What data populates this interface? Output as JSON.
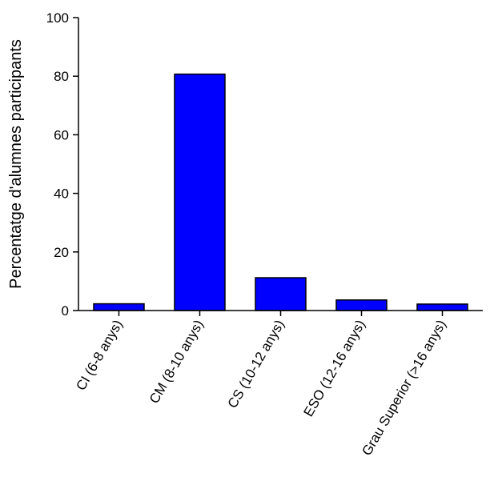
{
  "chart_data": {
    "type": "bar",
    "title": "",
    "xlabel": "",
    "ylabel": "Percentatge d'alumnes participants",
    "categories": [
      "CI (6-8 anys)",
      "CM (8-10 anys)",
      "CS (10-12 anys)",
      "ESO (12-16 anys)",
      "Grau Superior (>16 anys)"
    ],
    "values": [
      2.3,
      80.7,
      11.2,
      3.6,
      2.2
    ],
    "ylim": [
      0,
      100
    ],
    "yticks": [
      0,
      20,
      40,
      60,
      80,
      100
    ],
    "grid": false,
    "bar_color": "#0000ff"
  }
}
